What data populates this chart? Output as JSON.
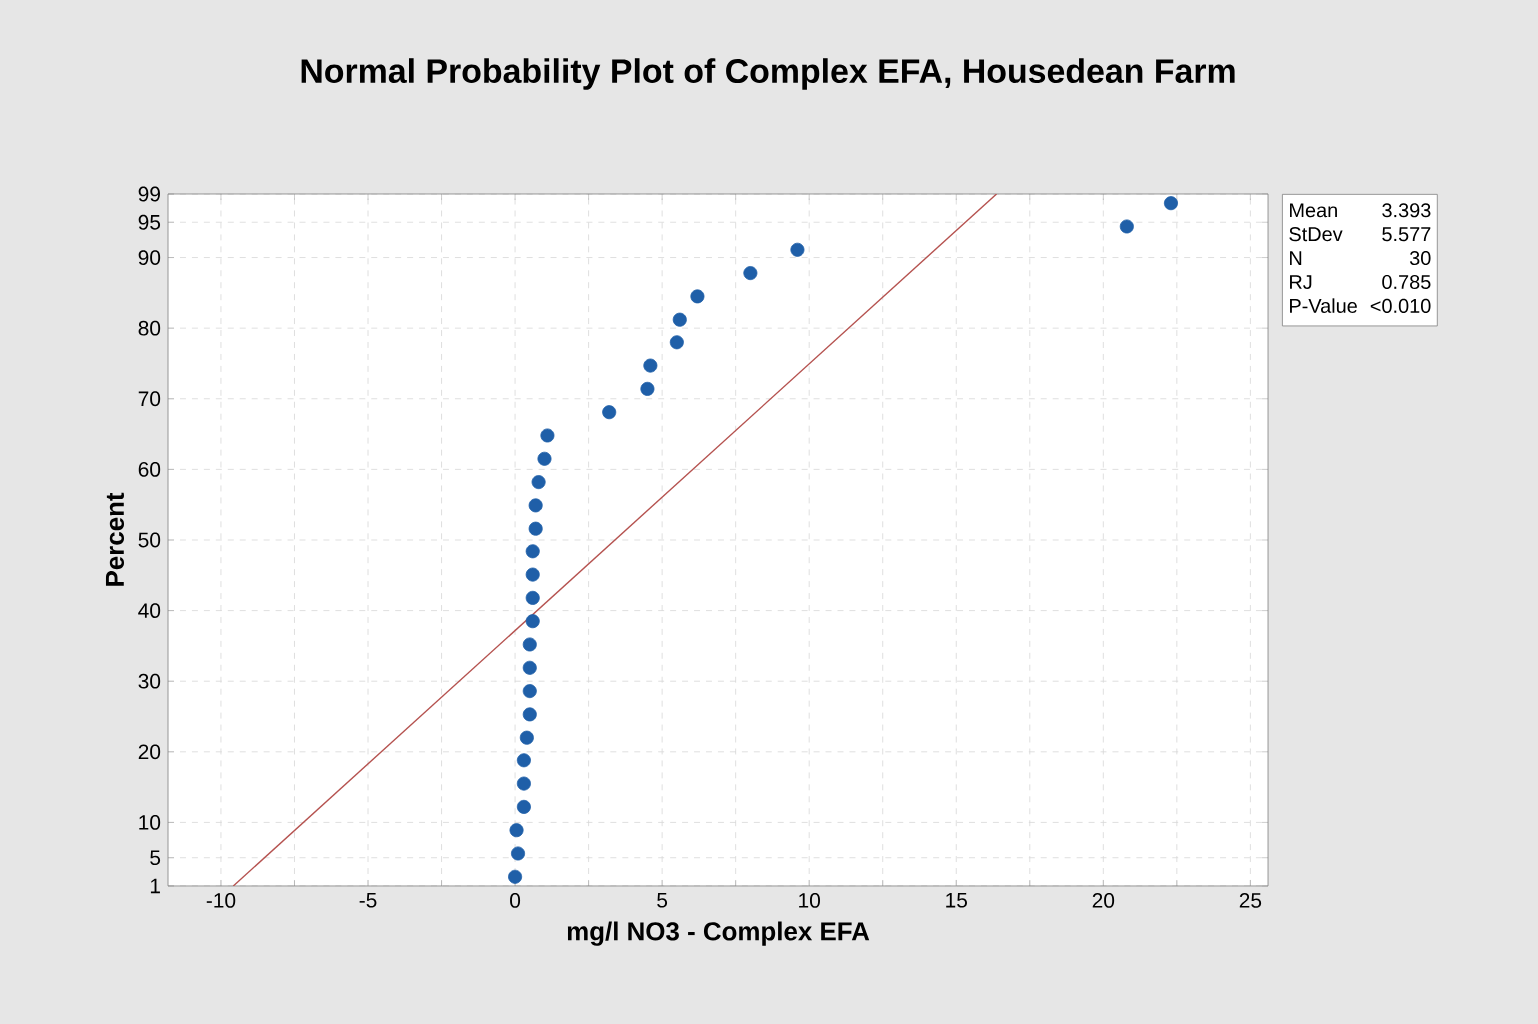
{
  "chart_data": {
    "type": "scatter",
    "title": "Normal Probability Plot of Complex EFA, Housedean Farm",
    "xlabel": "mg/l NO3 - Complex EFA",
    "ylabel": "Percent",
    "series": [
      {
        "color": "#1f5fa8",
        "x": [
          0.0,
          0.1,
          0.05,
          0.3,
          0.3,
          0.3,
          0.4,
          0.5,
          0.5,
          0.5,
          0.5,
          0.6,
          0.6,
          0.6,
          0.6,
          0.7,
          0.7,
          0.8,
          1.0,
          1.1,
          3.2,
          4.5,
          4.6,
          5.5,
          5.6,
          6.2,
          8.0,
          9.6,
          20.8,
          22.3
        ],
        "values": [
          2.3,
          5.6,
          8.9,
          12.2,
          15.5,
          18.8,
          22.0,
          25.3,
          28.6,
          31.9,
          35.2,
          38.5,
          41.8,
          45.1,
          48.4,
          51.6,
          54.9,
          58.2,
          61.5,
          64.8,
          68.1,
          71.4,
          74.7,
          78.0,
          81.2,
          84.5,
          87.8,
          91.1,
          94.4,
          97.7
        ]
      },
      {
        "type": "line",
        "marker": "none",
        "color": "#b5524f",
        "line_style": "solid",
        "x": [
          -9.58,
          16.37
        ],
        "values": [
          1,
          99
        ]
      }
    ],
    "marker": "circle",
    "grid": true,
    "xlim": [
      -11.8,
      25.6
    ],
    "xticks": [
      -10,
      -5,
      0,
      5,
      10,
      15,
      20,
      25
    ],
    "ylim": [
      1,
      99
    ],
    "yticks": [
      1,
      5,
      10,
      20,
      30,
      40,
      50,
      60,
      70,
      80,
      90,
      95,
      99
    ],
    "annotations": [
      "Mean",
      "3.393",
      "StDev",
      "5.577",
      "N",
      "30",
      "RJ",
      "0.785",
      "P-Value",
      "<0.010"
    ]
  }
}
